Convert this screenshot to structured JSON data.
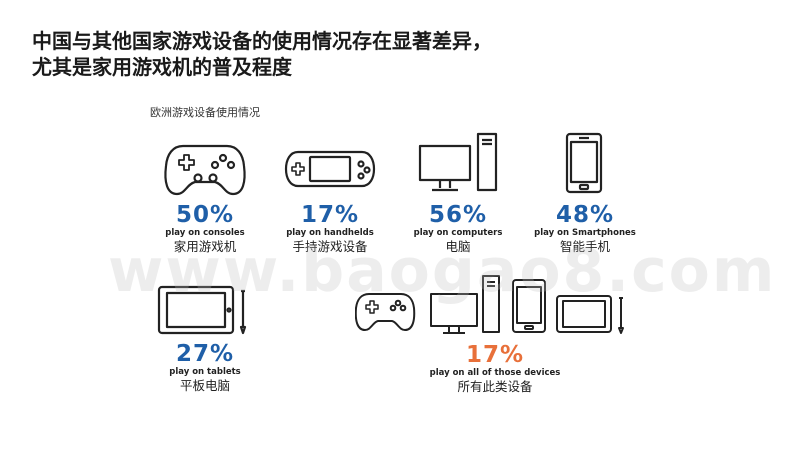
{
  "header": {
    "title_line1": "中国与其他国家游戏设备的使用情况存在显著差异，",
    "title_line2": "尤其是家用游戏机的普及程度"
  },
  "chart_data": {
    "type": "table",
    "title": "欧洲游戏设备使用情况",
    "items": [
      {
        "device": "consoles",
        "value": 50,
        "label": "50%",
        "en": "play on consoles",
        "cn": "家用游戏机",
        "color": "#1f5fa8"
      },
      {
        "device": "handhelds",
        "value": 17,
        "label": "17%",
        "en": "play on handhelds",
        "cn": "手持游戏设备",
        "color": "#1f5fa8"
      },
      {
        "device": "computers",
        "value": 56,
        "label": "56%",
        "en": "play on computers",
        "cn": "电脑",
        "color": "#1f5fa8"
      },
      {
        "device": "smartphones",
        "value": 48,
        "label": "48%",
        "en": "play on Smartphones",
        "cn": "智能手机",
        "color": "#1f5fa8"
      },
      {
        "device": "tablets",
        "value": 27,
        "label": "27%",
        "en": "play on tablets",
        "cn": "平板电脑",
        "color": "#1f5fa8"
      },
      {
        "device": "all",
        "value": 17,
        "label": "17%",
        "en": "play on all of those devices",
        "cn": "所有此类设备",
        "color": "#e8703a"
      }
    ]
  },
  "watermark": "www.baogao8.com"
}
